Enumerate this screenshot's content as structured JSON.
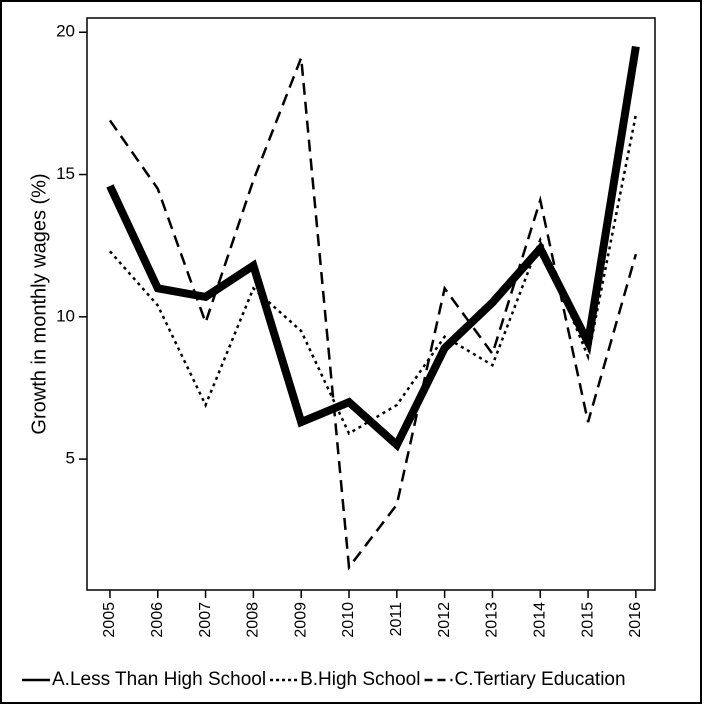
{
  "chart_data": {
    "type": "line",
    "y_label": "Growth in monthly wages (%)",
    "x": [
      2005,
      2006,
      2007,
      2008,
      2009,
      2010,
      2011,
      2012,
      2013,
      2014,
      2015,
      2016
    ],
    "xlim": [
      2004.52,
      2016.4
    ],
    "xticks": [
      2005,
      2006,
      2007,
      2008,
      2009,
      2010,
      2011,
      2012,
      2013,
      2014,
      2015,
      2016
    ],
    "ylim": [
      0.4,
      20.5
    ],
    "yticks": [
      5,
      10,
      15,
      20
    ],
    "series": [
      {
        "name": "A.Less Than High School",
        "color": "#000000",
        "style": "solid",
        "width": 8,
        "values": [
          14.6,
          11.0,
          10.7,
          11.8,
          6.3,
          7.0,
          5.5,
          8.9,
          10.5,
          12.4,
          9.1,
          19.5
        ]
      },
      {
        "name": "B.High School",
        "color": "#000000",
        "style": "dotted",
        "width": 2.5,
        "values": [
          12.3,
          10.4,
          6.9,
          11.0,
          9.5,
          5.9,
          6.9,
          9.3,
          8.3,
          12.7,
          8.6,
          17.1
        ]
      },
      {
        "name": "C.Tertiary Education",
        "color": "#000000",
        "style": "dashed",
        "width": 2.5,
        "values": [
          16.9,
          14.5,
          9.8,
          14.8,
          19.1,
          1.2,
          3.4,
          11.0,
          8.7,
          14.1,
          6.3,
          12.2
        ]
      }
    ]
  }
}
